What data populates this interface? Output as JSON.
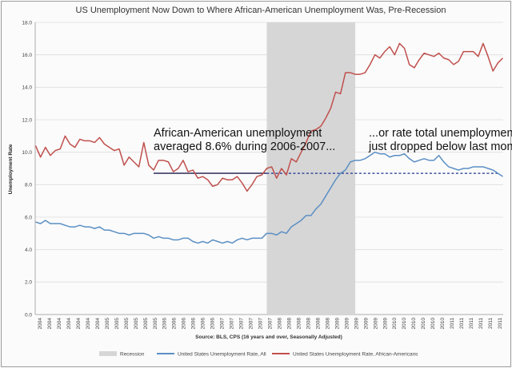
{
  "chart_data": {
    "type": "line",
    "title": "US Unemployment Now Down to Where African-American Unemployment Was, Pre-Recession",
    "ylabel": "Unemployment Rate",
    "xlabel": "Source:  BLS, CPS (16 years and over, Seasonally Adjusted)",
    "ylim": [
      0,
      18
    ],
    "yticks": [
      "0.0",
      "2.0",
      "4.0",
      "6.0",
      "8.0",
      "10.0",
      "12.0",
      "14.0",
      "16.0",
      "18.0"
    ],
    "x_tick_labels": [
      "2004",
      "2004",
      "2004",
      "2004",
      "2004",
      "2004",
      "2004",
      "2005",
      "2005",
      "2005",
      "2005",
      "2005",
      "2005",
      "2006",
      "2006",
      "2006",
      "2006",
      "2006",
      "2006",
      "2007",
      "2007",
      "2007",
      "2007",
      "2007",
      "2007",
      "2008",
      "2008",
      "2008",
      "2008",
      "2008",
      "2008",
      "2009",
      "2009",
      "2009",
      "2009",
      "2009",
      "2009",
      "2010",
      "2010",
      "2010",
      "2010",
      "2010",
      "2010",
      "2011",
      "2011",
      "2011",
      "2011",
      "2011",
      "2011"
    ],
    "x_start": "2004-01",
    "x_step_months": 1,
    "recession": {
      "label": "Recession",
      "from": "2007-12",
      "to": "2009-06",
      "color": "#d6d6d6"
    },
    "grid": true,
    "legend_position": "bottom",
    "series": [
      {
        "name": "United States Unemployment Rate, All",
        "color": "#5b8fc4",
        "values": [
          5.7,
          5.6,
          5.8,
          5.6,
          5.6,
          5.6,
          5.5,
          5.4,
          5.4,
          5.5,
          5.4,
          5.4,
          5.3,
          5.4,
          5.2,
          5.2,
          5.1,
          5.0,
          5.0,
          4.9,
          5.0,
          5.0,
          5.0,
          4.9,
          4.7,
          4.8,
          4.7,
          4.7,
          4.6,
          4.6,
          4.7,
          4.7,
          4.5,
          4.4,
          4.5,
          4.4,
          4.6,
          4.5,
          4.4,
          4.5,
          4.4,
          4.6,
          4.7,
          4.6,
          4.7,
          4.7,
          4.7,
          5.0,
          5.0,
          4.9,
          5.1,
          5.0,
          5.4,
          5.6,
          5.8,
          6.1,
          6.1,
          6.5,
          6.8,
          7.3,
          7.8,
          8.3,
          8.7,
          8.9,
          9.4,
          9.5,
          9.5,
          9.6,
          9.8,
          10.0,
          9.9,
          9.9,
          9.7,
          9.8,
          9.8,
          9.9,
          9.6,
          9.4,
          9.5,
          9.6,
          9.5,
          9.5,
          9.8,
          9.4,
          9.1,
          9.0,
          8.9,
          9.0,
          9.0,
          9.1,
          9.1,
          9.1,
          9.0,
          8.9,
          8.7,
          8.5
        ]
      },
      {
        "name": "United States Unemployment Rate, African-Americans",
        "color": "#c0504d",
        "values": [
          10.4,
          9.7,
          10.3,
          9.8,
          10.1,
          10.2,
          11.0,
          10.5,
          10.3,
          10.8,
          10.7,
          10.7,
          10.6,
          10.9,
          10.5,
          10.3,
          10.1,
          10.2,
          9.2,
          9.7,
          9.4,
          9.1,
          10.6,
          9.2,
          8.9,
          9.5,
          9.5,
          9.4,
          8.8,
          9.0,
          9.5,
          8.8,
          8.9,
          8.4,
          8.5,
          8.3,
          7.9,
          8.0,
          8.4,
          8.3,
          8.3,
          8.5,
          8.1,
          7.6,
          8.0,
          8.5,
          8.6,
          9.0,
          9.1,
          8.4,
          9.0,
          8.6,
          9.6,
          9.4,
          10.0,
          10.6,
          11.3,
          11.4,
          11.6,
          12.1,
          12.7,
          13.7,
          13.6,
          14.9,
          14.9,
          14.8,
          14.8,
          14.9,
          15.4,
          16.0,
          15.8,
          16.2,
          16.5,
          16.0,
          16.7,
          16.4,
          15.4,
          15.2,
          15.7,
          16.1,
          16.0,
          15.9,
          16.1,
          15.8,
          15.7,
          15.4,
          15.6,
          16.2,
          16.2,
          16.2,
          15.9,
          16.7,
          15.9,
          15.0,
          15.5,
          15.8
        ]
      }
    ],
    "reference_line": {
      "y": 8.7,
      "from": "2006-01",
      "to": "2011-11"
    }
  },
  "annotations": {
    "left_line1": "African-American unemployment",
    "left_line2": "averaged 8.6% during 2006-2007...",
    "right_line1": "...or rate total unemployment",
    "right_line2": "just dropped below last month."
  },
  "legend": {
    "recession": "Recession",
    "all": "United States Unemployment Rate, All",
    "aa": "United States Unemployment Rate, African-Americans"
  },
  "colors": {
    "all": "#5b8fc4",
    "aa": "#c0504d",
    "recession": "#d6d6d6",
    "grid": "#dcdcdc",
    "reference_solid": "#1a1a4a",
    "reference_dashed": "#1f2f8f"
  }
}
